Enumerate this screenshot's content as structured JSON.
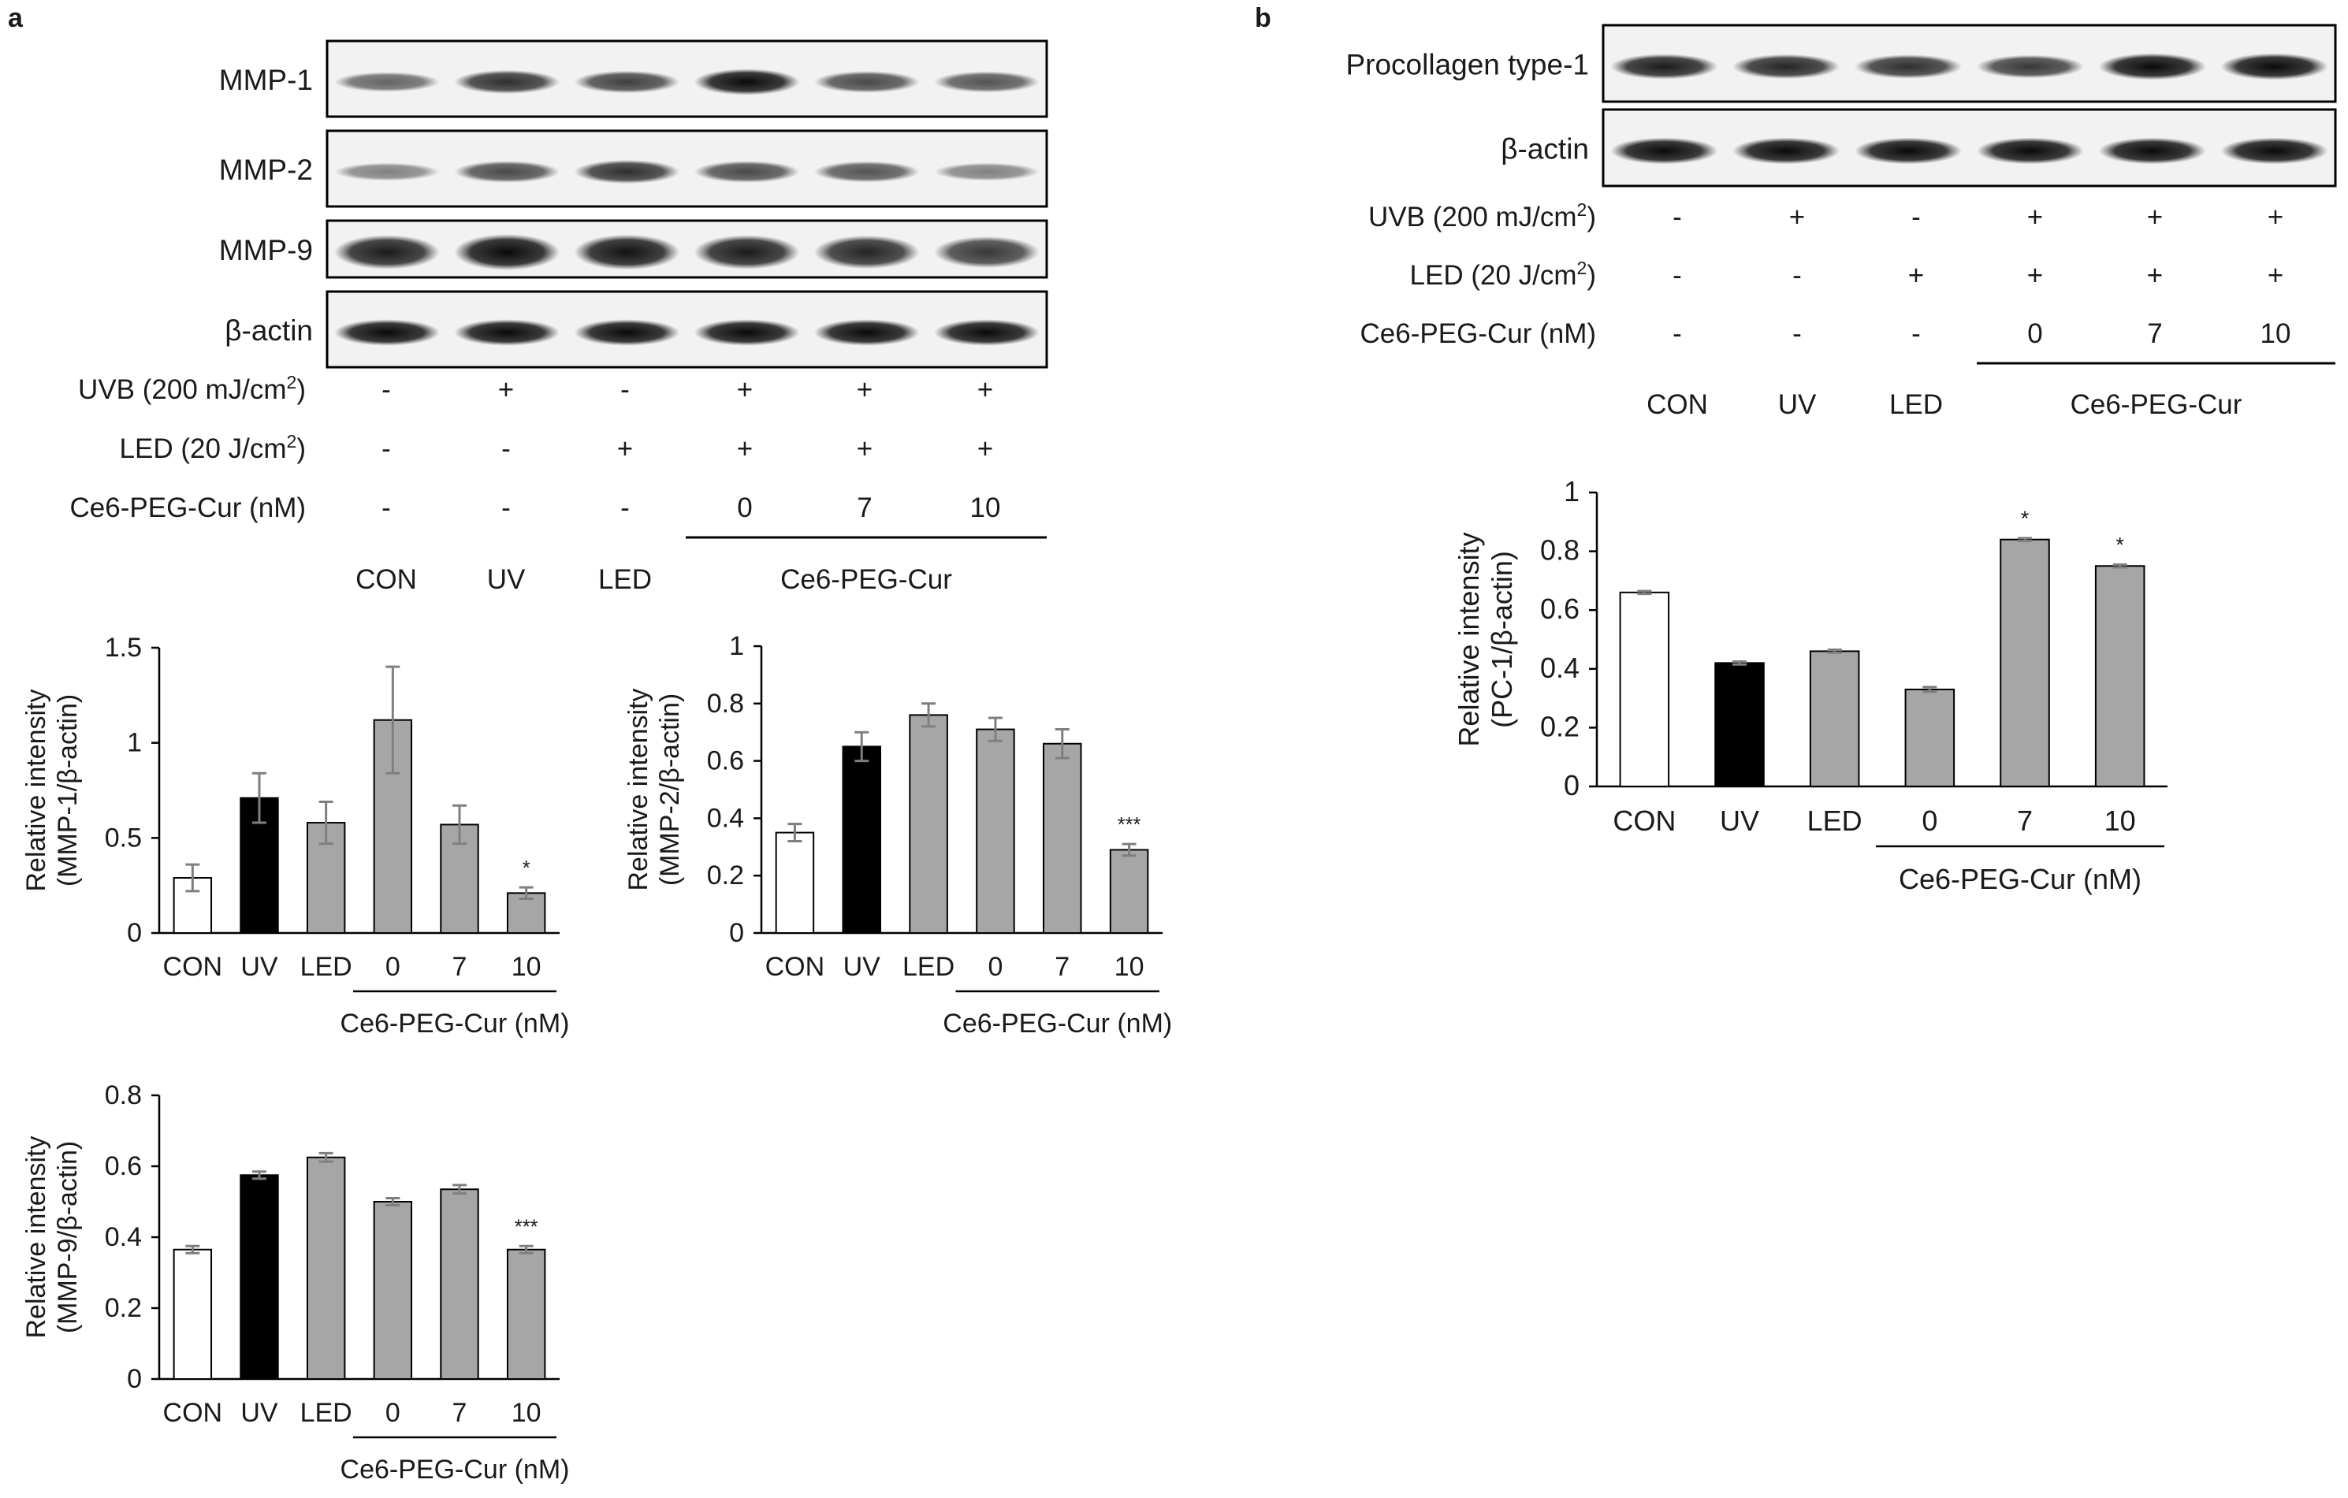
{
  "panels": {
    "a": {
      "label": "a",
      "blot": {
        "rows": [
          {
            "name": "MMP-1",
            "intensity": [
              0.45,
              0.75,
              0.65,
              0.95,
              0.6,
              0.55
            ],
            "height": "med"
          },
          {
            "name": "MMP-2",
            "intensity": [
              0.3,
              0.6,
              0.75,
              0.6,
              0.55,
              0.3
            ],
            "height": "med"
          },
          {
            "name": "MMP-9",
            "intensity": [
              0.85,
              0.95,
              0.9,
              0.85,
              0.8,
              0.7
            ],
            "height": "tall"
          },
          {
            "name": "β-actin",
            "intensity": [
              0.95,
              0.95,
              0.95,
              0.95,
              0.95,
              0.95
            ],
            "height": "med"
          }
        ]
      },
      "conditions": [
        {
          "label": "UVB (200 mJ/cm²)",
          "values": [
            "-",
            "+",
            "-",
            "+",
            "+",
            "+"
          ]
        },
        {
          "label": "LED (20 J/cm²)",
          "values": [
            "-",
            "-",
            "+",
            "+",
            "+",
            "+"
          ]
        },
        {
          "label": "Ce6-PEG-Cur (nM)",
          "values": [
            "-",
            "-",
            "-",
            "0",
            "7",
            "10"
          ]
        }
      ],
      "groups": [
        "CON",
        "UV",
        "LED"
      ],
      "group_bracket_label": "Ce6-PEG-Cur"
    },
    "b": {
      "label": "b",
      "blot": {
        "rows": [
          {
            "name": "Procollagen type-1",
            "intensity": [
              0.85,
              0.8,
              0.75,
              0.7,
              0.95,
              0.95
            ],
            "height": "med"
          },
          {
            "name": "β-actin",
            "intensity": [
              0.95,
              0.95,
              0.95,
              0.95,
              0.95,
              0.95
            ],
            "height": "med"
          }
        ]
      },
      "conditions": [
        {
          "label": "UVB (200 mJ/cm²)",
          "values": [
            "-",
            "+",
            "-",
            "+",
            "+",
            "+"
          ]
        },
        {
          "label": "LED (20 J/cm²)",
          "values": [
            "-",
            "-",
            "+",
            "+",
            "+",
            "+"
          ]
        },
        {
          "label": "Ce6-PEG-Cur (nM)",
          "values": [
            "-",
            "-",
            "-",
            "0",
            "7",
            "10"
          ]
        }
      ],
      "groups": [
        "CON",
        "UV",
        "LED"
      ],
      "group_bracket_label": "Ce6-PEG-Cur"
    }
  },
  "chart_data": [
    {
      "type": "bar",
      "categories": [
        "CON",
        "UV",
        "LED",
        "0",
        "7",
        "10"
      ],
      "values": [
        0.29,
        0.71,
        0.58,
        1.12,
        0.57,
        0.21
      ],
      "errors": [
        0.07,
        0.13,
        0.11,
        0.28,
        0.1,
        0.03
      ],
      "colors": [
        "#ffffff",
        "#000000",
        "#a6a6a6",
        "#a6a6a6",
        "#a6a6a6",
        "#a6a6a6"
      ],
      "significance": [
        "",
        "",
        "",
        "",
        "",
        "*"
      ],
      "ylabel": [
        "Relative intensity",
        "(MMP-1/β-actin)"
      ],
      "xlabel": "Ce6-PEG-Cur (nM)",
      "yticks": [
        "0",
        "0.5",
        "1",
        "1.5"
      ],
      "ylim": [
        0,
        1.5
      ]
    },
    {
      "type": "bar",
      "categories": [
        "CON",
        "UV",
        "LED",
        "0",
        "7",
        "10"
      ],
      "values": [
        0.35,
        0.65,
        0.76,
        0.71,
        0.66,
        0.29
      ],
      "errors": [
        0.03,
        0.05,
        0.04,
        0.04,
        0.05,
        0.02
      ],
      "colors": [
        "#ffffff",
        "#000000",
        "#a6a6a6",
        "#a6a6a6",
        "#a6a6a6",
        "#a6a6a6"
      ],
      "significance": [
        "",
        "",
        "",
        "",
        "",
        "***"
      ],
      "ylabel": [
        "Relative intensity",
        "(MMP-2/β-actin)"
      ],
      "xlabel": "Ce6-PEG-Cur (nM)",
      "yticks": [
        "0",
        "0.2",
        "0.4",
        "0.6",
        "0.8",
        "1"
      ],
      "ylim": [
        0,
        1
      ]
    },
    {
      "type": "bar",
      "categories": [
        "CON",
        "UV",
        "LED",
        "0",
        "7",
        "10"
      ],
      "values": [
        0.365,
        0.575,
        0.625,
        0.5,
        0.535,
        0.365
      ],
      "errors": [
        0.01,
        0.01,
        0.012,
        0.01,
        0.012,
        0.01
      ],
      "colors": [
        "#ffffff",
        "#000000",
        "#a6a6a6",
        "#a6a6a6",
        "#a6a6a6",
        "#a6a6a6"
      ],
      "significance": [
        "",
        "",
        "",
        "",
        "",
        "***"
      ],
      "ylabel": [
        "Relative intensity",
        "(MMP-9/β-actin)"
      ],
      "xlabel": "Ce6-PEG-Cur (nM)",
      "yticks": [
        "0",
        "0.2",
        "0.4",
        "0.6",
        "0.8"
      ],
      "ylim": [
        0,
        0.8
      ]
    },
    {
      "type": "bar",
      "categories": [
        "CON",
        "UV",
        "LED",
        "0",
        "7",
        "10"
      ],
      "values": [
        0.66,
        0.42,
        0.46,
        0.33,
        0.84,
        0.75
      ],
      "errors": [
        0.005,
        0.005,
        0.005,
        0.008,
        0.005,
        0.005
      ],
      "colors": [
        "#ffffff",
        "#000000",
        "#a6a6a6",
        "#a6a6a6",
        "#a6a6a6",
        "#a6a6a6"
      ],
      "significance": [
        "",
        "",
        "",
        "",
        "*",
        "*"
      ],
      "ylabel": [
        "Relative intensity",
        "(PC-1/β-actin)"
      ],
      "xlabel": "Ce6-PEG-Cur (nM)",
      "yticks": [
        "0",
        "0.2",
        "0.4",
        "0.6",
        "0.8",
        "1"
      ],
      "ylim": [
        0,
        1
      ]
    }
  ]
}
